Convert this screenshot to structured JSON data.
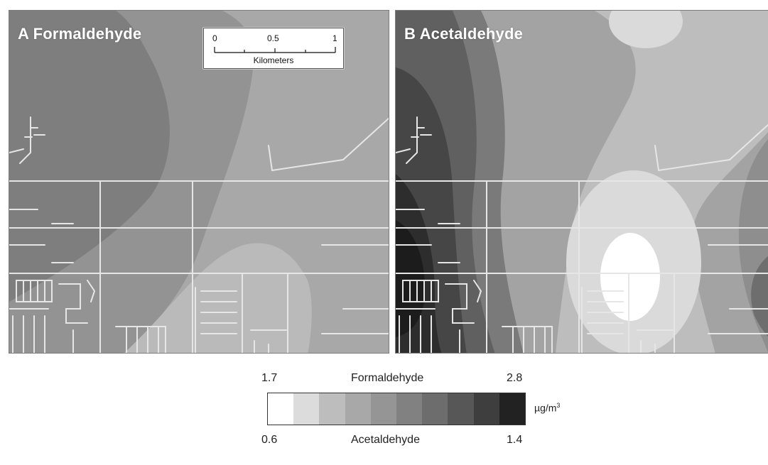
{
  "panels": {
    "a": {
      "label": "A Formaldehyde"
    },
    "b": {
      "label": "B Acetaldehyde"
    }
  },
  "scalebar": {
    "ticks": [
      "0",
      "0.5",
      "1"
    ],
    "unit": "Kilometers"
  },
  "legend": {
    "formaldehyde": {
      "name": "Formaldehyde",
      "min": "1.7",
      "max": "2.8"
    },
    "acetaldehyde": {
      "name": "Acetaldehyde",
      "min": "0.6",
      "max": "1.4"
    },
    "unit_base": "µg/m",
    "unit_exp": "3",
    "colors": [
      "#ffffff",
      "#dcdcdc",
      "#bdbdbd",
      "#a8a8a8",
      "#959595",
      "#818181",
      "#6d6d6d",
      "#575757",
      "#3e3e3e",
      "#222222"
    ]
  }
}
